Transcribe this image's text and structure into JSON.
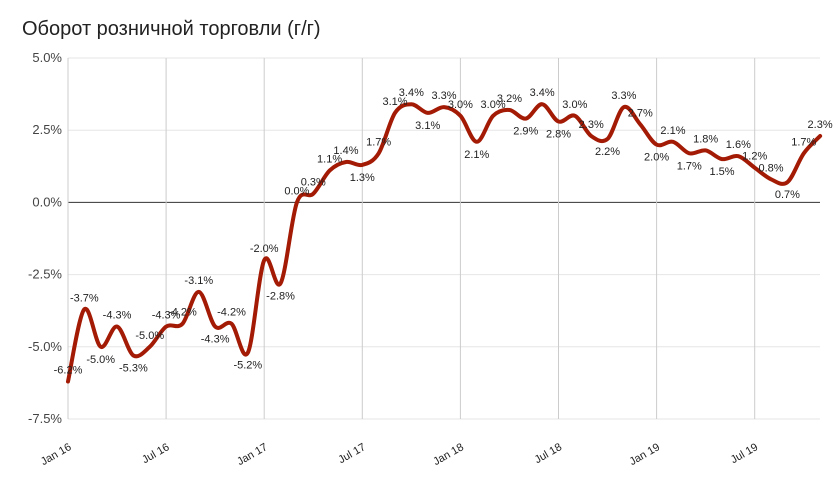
{
  "chart_data": {
    "type": "line",
    "title": "Оборот розничной торговли (г/г)",
    "xlabel": "",
    "ylabel": "",
    "ylim": [
      -7.5,
      5.0
    ],
    "yticks": [
      5.0,
      2.5,
      0.0,
      -2.5,
      -5.0,
      -7.5
    ],
    "ytick_labels": [
      "5.0%",
      "2.5%",
      "0.0%",
      "-2.5%",
      "-5.0%",
      "-7.5%"
    ],
    "xticks": [
      "Jan 16",
      "Jul 16",
      "Jan 17",
      "Jul 17",
      "Jan 18",
      "Jul 18",
      "Jan 19",
      "Jul 19"
    ],
    "grid": true,
    "line_color": "#a31a05",
    "series": [
      {
        "values": [
          -6.2,
          -3.7,
          -5.0,
          -4.3,
          -5.3,
          -5.0,
          -4.3,
          -4.2,
          -3.1,
          -4.3,
          -4.2,
          -5.2,
          -2.0,
          -2.8,
          0.0,
          0.3,
          1.1,
          1.4,
          1.3,
          1.7,
          3.1,
          3.4,
          3.1,
          3.3,
          3.0,
          2.1,
          3.0,
          3.2,
          2.9,
          3.4,
          2.8,
          3.0,
          2.3,
          2.2,
          3.3,
          2.7,
          2.0,
          2.1,
          1.7,
          1.8,
          1.5,
          1.6,
          1.2,
          0.8,
          0.7,
          1.7,
          2.3
        ],
        "data_labels": [
          "-6.2%",
          "-3.7%",
          "-5.0%",
          "-4.3%",
          "-5.3%",
          "-5.0%",
          "-4.3%",
          "-4.2%",
          "-3.1%",
          "-4.3%",
          "-4.2%",
          "-5.2%",
          "-2.0%",
          "-2.8%",
          "0.0%",
          "0.3%",
          "1.1%",
          "1.4%",
          "1.3%",
          "1.7%",
          "3.1%",
          "3.4%",
          "3.1%",
          "3.3%",
          "3.0%",
          "2.1%",
          "3.0%",
          "3.2%",
          "2.9%",
          "3.4%",
          "2.8%",
          "3.0%",
          "2.3%",
          "2.2%",
          "3.3%",
          "2.7%",
          "2.0%",
          "2.1%",
          "1.7%",
          "1.8%",
          "1.5%",
          "1.6%",
          "1.2%",
          "0.8%",
          "0.7%",
          "1.7%",
          "2.3%"
        ]
      }
    ]
  }
}
